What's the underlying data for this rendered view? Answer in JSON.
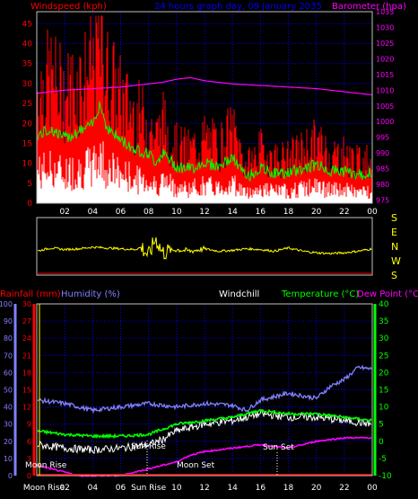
{
  "header": {
    "windspeed_label": "Windspeed (kph)",
    "title": "24 hours graph day, 09 January 2035",
    "barometer_label": "Barometer (hpa)"
  },
  "wind_dir_labels": [
    "S",
    "E",
    "N",
    "W",
    "S"
  ],
  "bottom_header": {
    "rainfall_label": "Rainfall (mm)",
    "humidity_label": "Humidity (%)",
    "windchill_label": "Windchill",
    "temperature_label": "Temperature (°C)",
    "dewpoint_label": "Dew Point (°C)"
  },
  "events": {
    "moon_rise_top": "Moon Rise",
    "moon_rise_axis": "Moon Rise",
    "sun_rise": "Sun Rise",
    "sun_rise_axis": "Sun Rise",
    "moon_set": "Moon Set",
    "sun_set": "Sun Set"
  },
  "colors": {
    "wind_avg": "#ff0000",
    "wind_gust_line": "#00ff00",
    "wind_base": "#ffffff",
    "barometer": "#ff00ff",
    "wind_dir": "#ffff00",
    "humidity": "#8080ff",
    "temperature": "#00ff00",
    "dewpoint": "#ff00ff",
    "windchill": "#ffffff",
    "rainfall": "#ff0000",
    "grid": "#0000ff"
  },
  "chart_data": [
    {
      "type": "area",
      "title": "24 hours graph day, 09 January 2035",
      "x_ticks": [
        "02",
        "04",
        "06",
        "08",
        "10",
        "12",
        "14",
        "16",
        "18",
        "20",
        "22",
        "00"
      ],
      "left_axis": {
        "label": "Windspeed (kph)",
        "ylim": [
          0,
          48
        ],
        "ticks": [
          0,
          5,
          10,
          15,
          20,
          25,
          30,
          35,
          40,
          45
        ]
      },
      "right_axis": {
        "label": "Barometer (hpa)",
        "ylim": [
          974,
          1035
        ],
        "ticks": [
          975,
          980,
          985,
          990,
          995,
          1000,
          1005,
          1010,
          1015,
          1020,
          1025,
          1030,
          1035
        ]
      },
      "grid": true,
      "series": [
        {
          "name": "Windspeed (kph)",
          "hours": [
            0,
            1,
            2,
            3,
            4,
            4.5,
            5,
            6,
            7,
            8,
            8.5,
            9,
            10,
            11,
            12,
            13,
            14,
            15,
            16,
            17,
            18,
            19,
            20,
            21,
            22,
            23,
            24
          ],
          "values": [
            28,
            31,
            27,
            30,
            33,
            43,
            32,
            26,
            22,
            20,
            16,
            20,
            14,
            13,
            16,
            14,
            18,
            9,
            13,
            11,
            11,
            13,
            15,
            12,
            12,
            10,
            11
          ]
        },
        {
          "name": "Barometer (hpa)",
          "hours": [
            0,
            2,
            4,
            6,
            8,
            9,
            10,
            11,
            12,
            14,
            16,
            18,
            20,
            22,
            24
          ],
          "values": [
            1009,
            1010,
            1010.5,
            1011,
            1012,
            1012.5,
            1013.5,
            1014,
            1013,
            1012,
            1011.5,
            1011,
            1010.5,
            1009.5,
            1008.5
          ]
        }
      ]
    },
    {
      "type": "line",
      "title": "",
      "right_labels": [
        "S",
        "E",
        "N",
        "W",
        "S"
      ],
      "series": [
        {
          "name": "",
          "hours": [
            0,
            1,
            2,
            3,
            4,
            5,
            6,
            7,
            7.5,
            8,
            8.5,
            9,
            10,
            11,
            12,
            13,
            14,
            15,
            16,
            17,
            18,
            19,
            20,
            21,
            22,
            23,
            24
          ],
          "values": [
            150,
            170,
            160,
            165,
            175,
            170,
            165,
            160,
            175,
            120,
            230,
            140,
            160,
            150,
            165,
            150,
            155,
            165,
            160,
            150,
            170,
            150,
            140,
            135,
            140,
            150,
            165
          ]
        }
      ]
    },
    {
      "type": "line",
      "title": "",
      "x_ticks": [
        "Moon Rise",
        "02",
        "04",
        "06",
        "Sun Rise",
        "10",
        "12",
        "14",
        "16",
        "18",
        "20",
        "22",
        "00"
      ],
      "left_axis_rain": {
        "label": "Rainfall (mm)",
        "ylim": [
          0,
          30
        ],
        "ticks": [
          0,
          3,
          6,
          9,
          12,
          15,
          18,
          21,
          24,
          27,
          30
        ]
      },
      "left_axis_humidity": {
        "label": "Humidity (%)",
        "ylim": [
          0,
          100
        ],
        "ticks": [
          0,
          10,
          20,
          30,
          40,
          50,
          60,
          70,
          80,
          90,
          100
        ]
      },
      "right_axis": {
        "label": "Temperature (°C)",
        "ylim": [
          -10,
          40
        ],
        "ticks": [
          -10,
          -5,
          0,
          5,
          10,
          15,
          20,
          25,
          30,
          35,
          40
        ]
      },
      "grid": true,
      "series": [
        {
          "name": "Humidity (%)",
          "hours": [
            0,
            2,
            4,
            6,
            8,
            10,
            12,
            14,
            15,
            16,
            18,
            20,
            21,
            22,
            23,
            24
          ],
          "values": [
            44,
            42,
            38,
            40,
            42,
            40,
            42,
            41,
            38,
            44,
            48,
            45,
            52,
            56,
            63,
            62
          ]
        },
        {
          "name": "Temperature (°C)",
          "hours": [
            0,
            2,
            4,
            6,
            8,
            9,
            10,
            12,
            14,
            16,
            18,
            20,
            22,
            24
          ],
          "values": [
            3,
            2,
            1.5,
            1.5,
            2,
            3.5,
            5,
            6,
            7,
            9,
            8,
            8,
            7,
            6
          ]
        },
        {
          "name": "Dew Point (°C)",
          "hours": [
            0,
            1,
            2,
            3,
            4,
            6,
            8,
            10,
            11,
            12,
            14,
            16,
            18,
            20,
            22,
            24
          ],
          "values": [
            -7,
            -8,
            -9,
            -10,
            -10,
            -10,
            -8,
            -6,
            -4,
            -3,
            -2,
            -1,
            -2,
            0,
            1,
            1
          ]
        },
        {
          "name": "Windchill",
          "hours": [
            0,
            2,
            4,
            6,
            8,
            9,
            10,
            12,
            14,
            16,
            18,
            20,
            22,
            24
          ],
          "values": [
            -1,
            -2,
            -2.5,
            -2,
            -1,
            0.5,
            3,
            5,
            6,
            8,
            7,
            7,
            6,
            5
          ]
        },
        {
          "name": "Rainfall (mm)",
          "hours": [
            0,
            24
          ],
          "values": [
            0,
            0
          ]
        }
      ]
    }
  ]
}
